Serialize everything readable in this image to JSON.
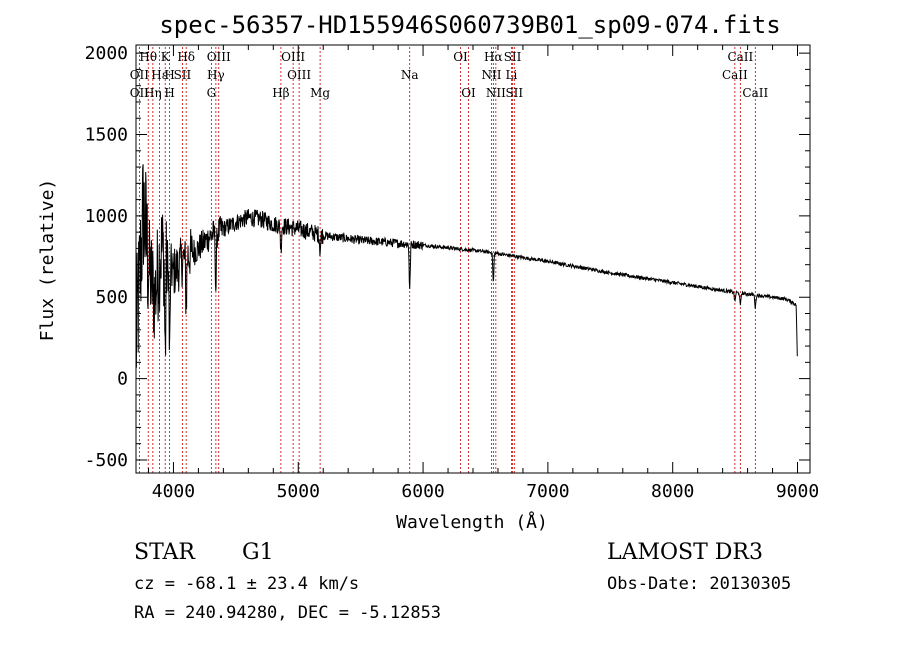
{
  "chart_data": {
    "type": "line",
    "title": "spec-56357-HD155946S060739B01_sp09-074.fits",
    "xlabel": "Wavelength (Å)",
    "ylabel": "Flux (relative)",
    "xlim": [
      3700,
      9100
    ],
    "ylim": [
      -580,
      2050
    ],
    "x_ticks": [
      4000,
      5000,
      6000,
      7000,
      8000,
      9000
    ],
    "x_tick_labels": [
      "4000",
      "5000",
      "6000",
      "7000",
      "8000",
      "9000"
    ],
    "y_ticks": [
      -500,
      0,
      500,
      1000,
      1500,
      2000
    ],
    "y_tick_labels": [
      "-500",
      "0",
      "500",
      "1000",
      "1500",
      "2000"
    ],
    "series": [
      {
        "name": "flux",
        "continuum_points": [
          [
            3700,
            200
          ],
          [
            3760,
            1050
          ],
          [
            3800,
            700
          ],
          [
            3850,
            500
          ],
          [
            3900,
            800
          ],
          [
            4000,
            650
          ],
          [
            4100,
            750
          ],
          [
            4200,
            800
          ],
          [
            4300,
            880
          ],
          [
            4400,
            920
          ],
          [
            4500,
            960
          ],
          [
            4600,
            990
          ],
          [
            4700,
            980
          ],
          [
            4800,
            950
          ],
          [
            5000,
            920
          ],
          [
            5200,
            880
          ],
          [
            5500,
            850
          ],
          [
            6000,
            820
          ],
          [
            6500,
            780
          ],
          [
            7000,
            720
          ],
          [
            7500,
            650
          ],
          [
            8000,
            590
          ],
          [
            8500,
            530
          ],
          [
            8900,
            490
          ],
          [
            8960,
            470
          ],
          [
            8990,
            450
          ],
          [
            9000,
            50
          ]
        ],
        "absorption_features": [
          [
            3934,
            600
          ],
          [
            3969,
            550
          ],
          [
            4102,
            300
          ],
          [
            4340,
            350
          ],
          [
            4861,
            150
          ],
          [
            5175,
            100
          ],
          [
            5893,
            280
          ],
          [
            6563,
            180
          ],
          [
            8498,
            60
          ],
          [
            8542,
            80
          ],
          [
            8662,
            80
          ]
        ]
      }
    ],
    "spectral_lines": [
      {
        "label": "Hθ",
        "wavelength": 3798,
        "row": 1
      },
      {
        "label": "K",
        "wavelength": 3934,
        "row": 1
      },
      {
        "label": "Hδ",
        "wavelength": 4102,
        "row": 1
      },
      {
        "label": "OIII",
        "wavelength": 4363,
        "row": 1
      },
      {
        "label": "OIII",
        "wavelength": 4959,
        "row": 1
      },
      {
        "label": "OI",
        "wavelength": 6300,
        "row": 1
      },
      {
        "label": "Hα",
        "wavelength": 6563,
        "row": 1
      },
      {
        "label": "SII",
        "wavelength": 6717,
        "row": 1
      },
      {
        "label": "CaII",
        "wavelength": 8542,
        "row": 1
      },
      {
        "label": "OII",
        "wavelength": 3727,
        "row": 2
      },
      {
        "label": "Hε",
        "wavelength": 3889,
        "row": 2
      },
      {
        "label": "H",
        "wavelength": 3969,
        "row": 2
      },
      {
        "label": "SII",
        "wavelength": 4072,
        "row": 2
      },
      {
        "label": "Hγ",
        "wavelength": 4340,
        "row": 2
      },
      {
        "label": "OIII",
        "wavelength": 5007,
        "row": 2
      },
      {
        "label": "Na",
        "wavelength": 5893,
        "row": 2
      },
      {
        "label": "NII",
        "wavelength": 6548,
        "row": 2
      },
      {
        "label": "Li",
        "wavelength": 6708,
        "row": 2
      },
      {
        "label": "CaII",
        "wavelength": 8498,
        "row": 2
      },
      {
        "label": "OII",
        "wavelength": 3727,
        "row": 3
      },
      {
        "label": "Hη",
        "wavelength": 3835,
        "row": 3
      },
      {
        "label": "H",
        "wavelength": 3969,
        "row": 3
      },
      {
        "label": "G",
        "wavelength": 4304,
        "row": 3
      },
      {
        "label": "Hβ",
        "wavelength": 4861,
        "row": 3
      },
      {
        "label": "Mg",
        "wavelength": 5175,
        "row": 3
      },
      {
        "label": "OI",
        "wavelength": 6364,
        "row": 3
      },
      {
        "label": "NII",
        "wavelength": 6583,
        "row": 3
      },
      {
        "label": "SII",
        "wavelength": 6731,
        "row": 3
      },
      {
        "label": "CaII",
        "wavelength": 8662,
        "row": 3
      }
    ]
  },
  "info": {
    "class": "STAR",
    "subclass": "G1",
    "survey": "LAMOST DR3",
    "redshift": "cz = -68.1 ± 23.4 km/s",
    "obs_date": "Obs-Date: 20130305",
    "coords": "RA = 240.94280, DEC =  -5.12853"
  },
  "colors": {
    "axis": "#000000",
    "spectrum": "#000000",
    "line_marker": "#cc0000"
  }
}
